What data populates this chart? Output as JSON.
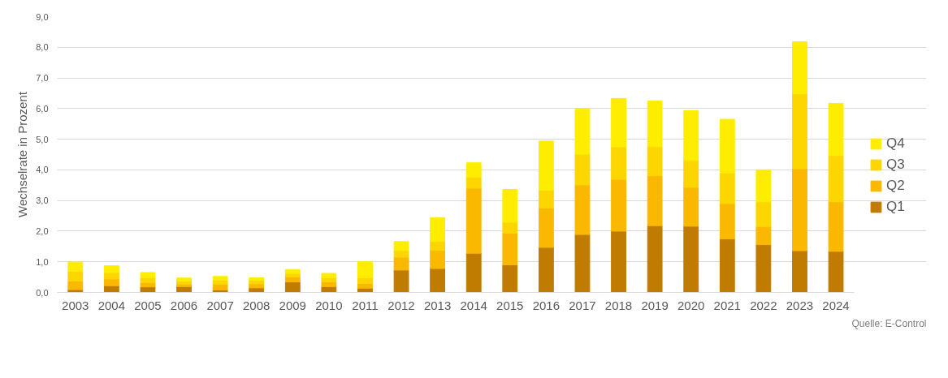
{
  "chart_data": {
    "type": "bar",
    "stacked": true,
    "ylabel": "Wechselrate in Prozent",
    "categories": [
      "2003",
      "2004",
      "2005",
      "2006",
      "2007",
      "2008",
      "2009",
      "2010",
      "2011",
      "2012",
      "2013",
      "2014",
      "2015",
      "2016",
      "2017",
      "2018",
      "2019",
      "2020",
      "2021",
      "2022",
      "2023",
      "2024"
    ],
    "series": [
      {
        "name": "Q1",
        "color": "#c07c00",
        "values": [
          0.09,
          0.22,
          0.18,
          0.19,
          0.08,
          0.15,
          0.34,
          0.19,
          0.14,
          0.73,
          0.78,
          1.28,
          0.9,
          1.47,
          1.89,
          2.0,
          2.18,
          2.16,
          1.75,
          1.56,
          1.36,
          1.34
        ]
      },
      {
        "name": "Q2",
        "color": "#fab800",
        "values": [
          0.28,
          0.22,
          0.14,
          0.08,
          0.19,
          0.13,
          0.17,
          0.15,
          0.15,
          0.42,
          0.59,
          2.12,
          1.03,
          1.28,
          1.62,
          1.69,
          1.63,
          1.27,
          1.15,
          0.59,
          2.68,
          1.62
        ]
      },
      {
        "name": "Q3",
        "color": "#fdd600",
        "values": [
          0.32,
          0.21,
          0.16,
          0.1,
          0.13,
          0.12,
          0.11,
          0.14,
          0.19,
          0.22,
          0.3,
          0.36,
          0.36,
          0.59,
          1.0,
          1.06,
          0.95,
          0.88,
          1.0,
          0.81,
          2.44,
          1.51
        ]
      },
      {
        "name": "Q4",
        "color": "#ffed00",
        "values": [
          0.3,
          0.22,
          0.17,
          0.1,
          0.12,
          0.08,
          0.13,
          0.14,
          0.52,
          0.29,
          0.77,
          0.47,
          1.07,
          1.6,
          1.48,
          1.58,
          1.49,
          1.62,
          1.75,
          1.04,
          1.7,
          1.7
        ]
      }
    ],
    "ylim": [
      0,
      9
    ],
    "yticks": [
      {
        "value": 0,
        "label": "0,0"
      },
      {
        "value": 1,
        "label": "1,0"
      },
      {
        "value": 2,
        "label": "2,0"
      },
      {
        "value": 3,
        "label": "3,0"
      },
      {
        "value": 4,
        "label": "4,0"
      },
      {
        "value": 5,
        "label": "5,0"
      },
      {
        "value": 6,
        "label": "6,0"
      },
      {
        "value": 7,
        "label": "7,0"
      },
      {
        "value": 8,
        "label": "8,0"
      },
      {
        "value": 9,
        "label": "9,0"
      }
    ],
    "grid": "y",
    "legend": "right",
    "annotations": [
      "Quelle: E-Control"
    ]
  }
}
